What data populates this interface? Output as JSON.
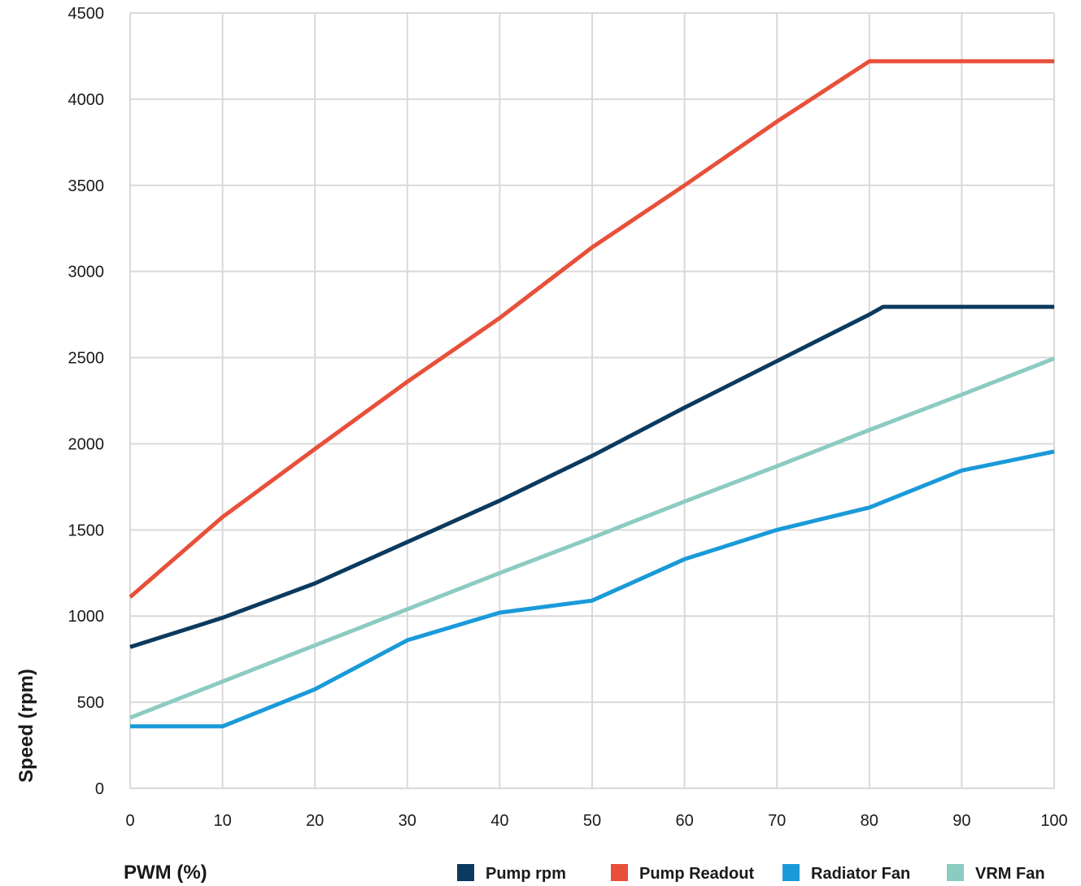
{
  "chart_data": {
    "type": "line",
    "xlabel": "PWM (%)",
    "ylabel": "Speed (rpm)",
    "xlim": [
      0,
      100
    ],
    "ylim": [
      0,
      4500
    ],
    "x_ticks": [
      0,
      10,
      20,
      30,
      40,
      50,
      60,
      70,
      80,
      90,
      100
    ],
    "y_ticks": [
      0,
      500,
      1000,
      1500,
      2000,
      2500,
      3000,
      3500,
      4000,
      4500
    ],
    "grid": true,
    "legend_position": "bottom-right",
    "series": [
      {
        "name": "Pump rpm",
        "color": "#0b3a5e",
        "points": [
          [
            0,
            820
          ],
          [
            10,
            990
          ],
          [
            20,
            1190
          ],
          [
            30,
            1430
          ],
          [
            40,
            1670
          ],
          [
            50,
            1930
          ],
          [
            60,
            2210
          ],
          [
            70,
            2480
          ],
          [
            80,
            2750
          ],
          [
            81.5,
            2795
          ],
          [
            90,
            2795
          ],
          [
            100,
            2795
          ]
        ]
      },
      {
        "name": "Pump Readout",
        "color": "#e8503a",
        "points": [
          [
            0,
            1110
          ],
          [
            10,
            1575
          ],
          [
            20,
            1970
          ],
          [
            30,
            2360
          ],
          [
            40,
            2730
          ],
          [
            50,
            3140
          ],
          [
            60,
            3500
          ],
          [
            70,
            3870
          ],
          [
            80,
            4220
          ],
          [
            90,
            4220
          ],
          [
            100,
            4220
          ]
        ]
      },
      {
        "name": "Radiator Fan",
        "color": "#1a9ad9",
        "points": [
          [
            0,
            360
          ],
          [
            10,
            360
          ],
          [
            20,
            575
          ],
          [
            30,
            860
          ],
          [
            40,
            1020
          ],
          [
            50,
            1090
          ],
          [
            60,
            1330
          ],
          [
            70,
            1500
          ],
          [
            80,
            1630
          ],
          [
            90,
            1845
          ],
          [
            100,
            1955
          ]
        ]
      },
      {
        "name": "VRM Fan",
        "color": "#8ccbc1",
        "points": [
          [
            0,
            410
          ],
          [
            10,
            620
          ],
          [
            20,
            830
          ],
          [
            30,
            1040
          ],
          [
            40,
            1250
          ],
          [
            50,
            1455
          ],
          [
            60,
            1665
          ],
          [
            70,
            1870
          ],
          [
            80,
            2080
          ],
          [
            90,
            2285
          ],
          [
            100,
            2495
          ]
        ]
      }
    ]
  }
}
